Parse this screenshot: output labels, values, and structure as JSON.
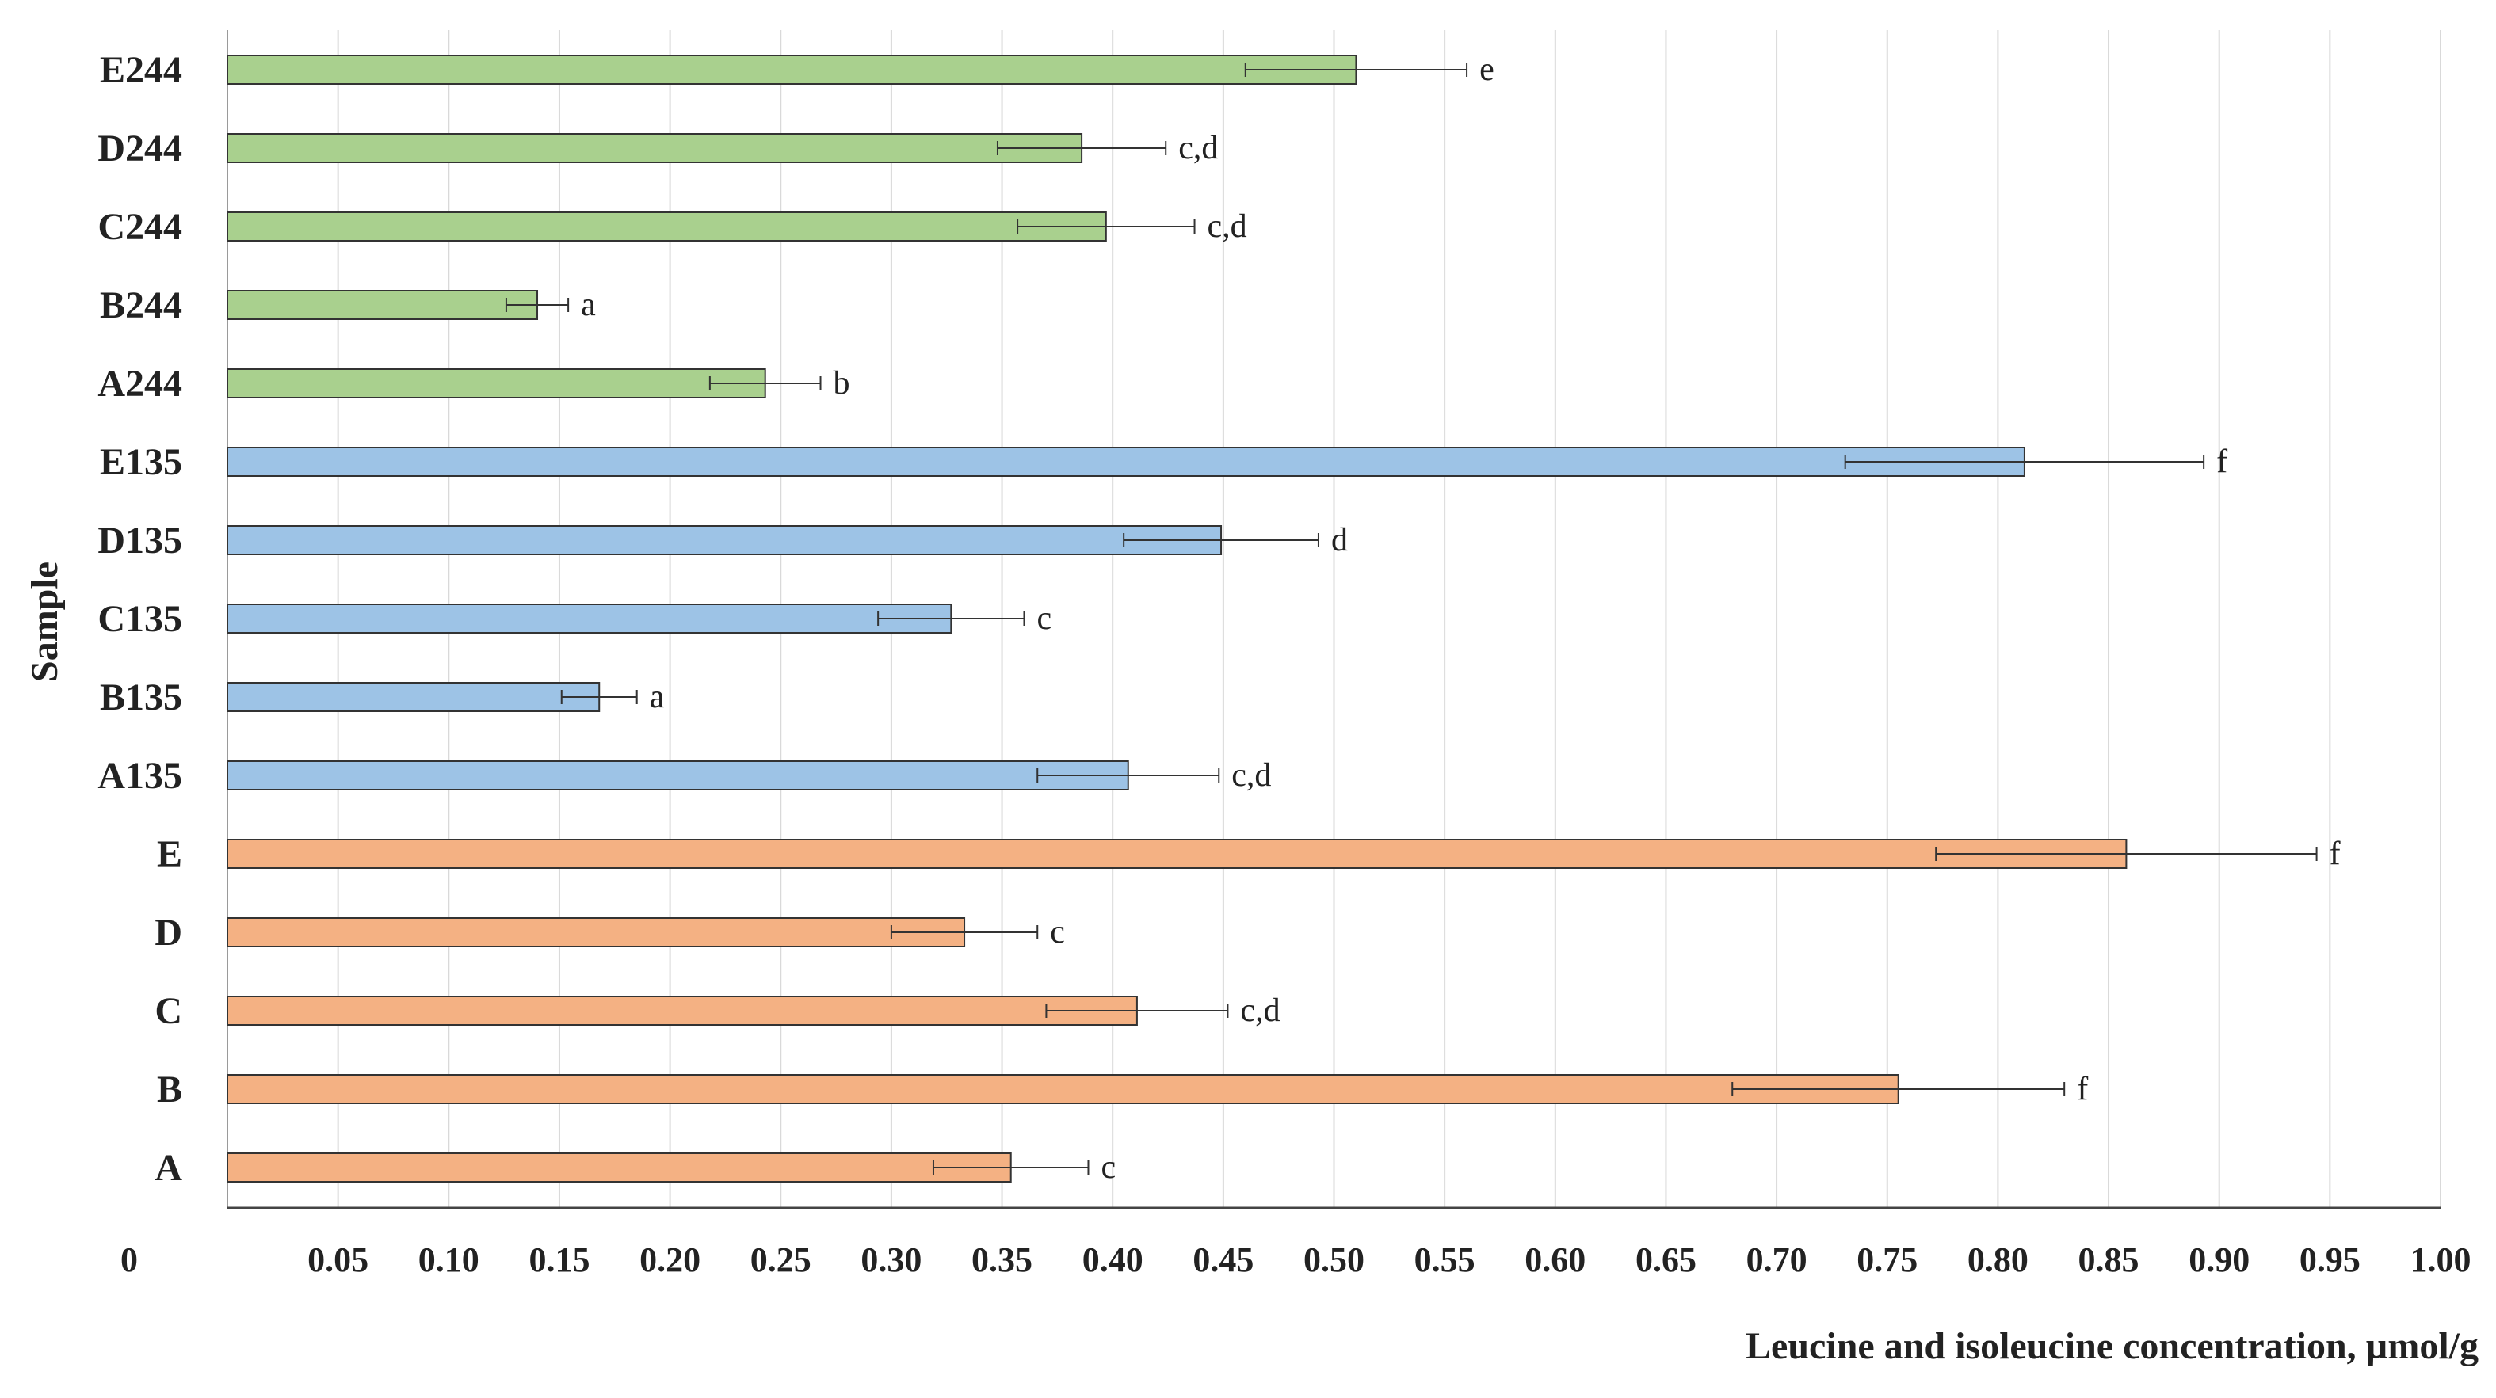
{
  "chart_data": {
    "type": "bar",
    "orientation": "horizontal",
    "xlabel": "Leucine and isoleucine concentration, µmol/g",
    "ylabel": "Sample",
    "xlim": [
      0,
      1.0
    ],
    "x_ticks": [
      "0",
      "0.05",
      "0.10",
      "0.15",
      "0.20",
      "0.25",
      "0.30",
      "0.35",
      "0.40",
      "0.45",
      "0.50",
      "0.55",
      "0.60",
      "0.65",
      "0.70",
      "0.75",
      "0.80",
      "0.85",
      "0.90",
      "0.95",
      "1.00"
    ],
    "grid": "vertical",
    "colors": {
      "244": "#a9d08e",
      "135": "#9dc3e6",
      "base": "#f4b183",
      "edge": "#333333",
      "grid": "#d9d9d9"
    },
    "bars": [
      {
        "label": "E244",
        "value": 0.51,
        "error": 0.05,
        "sig": "e",
        "group": "244"
      },
      {
        "label": "D244",
        "value": 0.386,
        "error": 0.038,
        "sig": "c,d",
        "group": "244"
      },
      {
        "label": "C244",
        "value": 0.397,
        "error": 0.04,
        "sig": "c,d",
        "group": "244"
      },
      {
        "label": "B244",
        "value": 0.14,
        "error": 0.014,
        "sig": "a",
        "group": "244"
      },
      {
        "label": "A244",
        "value": 0.243,
        "error": 0.025,
        "sig": "b",
        "group": "244"
      },
      {
        "label": "E135",
        "value": 0.812,
        "error": 0.081,
        "sig": "f",
        "group": "135"
      },
      {
        "label": "D135",
        "value": 0.449,
        "error": 0.044,
        "sig": "d",
        "group": "135"
      },
      {
        "label": "C135",
        "value": 0.327,
        "error": 0.033,
        "sig": "c",
        "group": "135"
      },
      {
        "label": "B135",
        "value": 0.168,
        "error": 0.017,
        "sig": "a",
        "group": "135"
      },
      {
        "label": "A135",
        "value": 0.407,
        "error": 0.041,
        "sig": "c,d",
        "group": "135"
      },
      {
        "label": "E",
        "value": 0.858,
        "error": 0.086,
        "sig": "f",
        "group": "base"
      },
      {
        "label": "D",
        "value": 0.333,
        "error": 0.033,
        "sig": "c",
        "group": "base"
      },
      {
        "label": "C",
        "value": 0.411,
        "error": 0.041,
        "sig": "c,d",
        "group": "base"
      },
      {
        "label": "B",
        "value": 0.755,
        "error": 0.075,
        "sig": "f",
        "group": "base"
      },
      {
        "label": "A",
        "value": 0.354,
        "error": 0.035,
        "sig": "c",
        "group": "base"
      }
    ]
  }
}
